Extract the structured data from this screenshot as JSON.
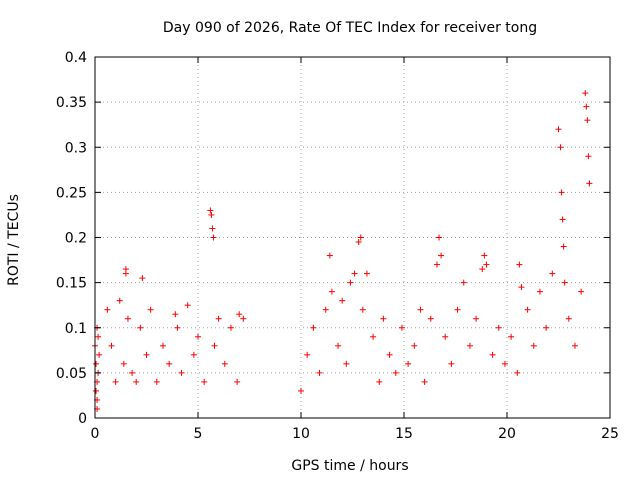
{
  "chart_data": {
    "type": "scatter",
    "title": "Day 090 of 2026, Rate Of TEC Index for receiver tong",
    "xlabel": "GPS time / hours",
    "ylabel": "ROTI / TECUs",
    "xlim": [
      0,
      25
    ],
    "ylim": [
      0,
      0.4
    ],
    "x_ticks": [
      0,
      5,
      10,
      15,
      20,
      25
    ],
    "x_tick_labels": [
      "0",
      "5",
      "10",
      "15",
      "20",
      "25"
    ],
    "y_ticks": [
      0,
      0.05,
      0.1,
      0.15,
      0.2,
      0.25,
      0.3,
      0.35,
      0.4
    ],
    "y_tick_labels": [
      "0",
      "0.05",
      "0.1",
      "0.15",
      "0.2",
      "0.25",
      "0.3",
      "0.35",
      "0.4"
    ],
    "grid": true,
    "marker": "plus",
    "marker_color": "#ff0000",
    "series": [
      {
        "x": [
          0.0,
          0.05,
          0.1,
          0.1,
          0.15,
          0.2,
          0.1,
          0.1,
          0.05,
          0.15,
          0.6,
          0.8,
          1.0,
          1.2,
          1.4,
          1.5,
          1.5,
          1.6,
          1.8,
          2.0,
          2.2,
          2.3,
          2.5,
          2.7,
          3.0,
          3.3,
          3.6,
          3.9,
          4.0,
          4.2,
          4.5,
          4.8,
          5.0,
          5.3,
          5.6,
          5.65,
          5.7,
          5.75,
          5.8,
          6.0,
          6.3,
          6.6,
          6.9,
          7.0,
          7.2,
          10.0,
          10.3,
          10.6,
          10.9,
          11.2,
          11.4,
          11.5,
          11.8,
          12.0,
          12.2,
          12.4,
          12.6,
          12.8,
          12.9,
          13.0,
          13.2,
          13.5,
          13.8,
          14.0,
          14.3,
          14.6,
          14.9,
          15.2,
          15.5,
          15.8,
          16.0,
          16.3,
          16.6,
          16.7,
          16.8,
          17.0,
          17.3,
          17.6,
          17.9,
          18.2,
          18.5,
          18.8,
          18.9,
          19.0,
          19.3,
          19.6,
          19.9,
          20.2,
          20.5,
          20.6,
          20.7,
          21.0,
          21.3,
          21.6,
          21.9,
          22.2,
          22.5,
          22.6,
          22.65,
          22.7,
          22.75,
          22.8,
          23.0,
          23.3,
          23.6,
          23.8,
          23.85,
          23.9,
          23.95,
          24.0
        ],
        "y": [
          0.08,
          0.03,
          0.02,
          0.1,
          0.09,
          0.07,
          0.04,
          0.01,
          0.06,
          0.05,
          0.12,
          0.08,
          0.04,
          0.13,
          0.06,
          0.16,
          0.165,
          0.11,
          0.05,
          0.04,
          0.1,
          0.155,
          0.07,
          0.12,
          0.04,
          0.08,
          0.06,
          0.115,
          0.1,
          0.05,
          0.125,
          0.07,
          0.09,
          0.04,
          0.23,
          0.225,
          0.21,
          0.2,
          0.08,
          0.11,
          0.06,
          0.1,
          0.04,
          0.115,
          0.11,
          0.03,
          0.07,
          0.1,
          0.05,
          0.12,
          0.18,
          0.14,
          0.08,
          0.13,
          0.06,
          0.15,
          0.16,
          0.195,
          0.2,
          0.12,
          0.16,
          0.09,
          0.04,
          0.11,
          0.07,
          0.05,
          0.1,
          0.06,
          0.08,
          0.12,
          0.04,
          0.11,
          0.17,
          0.2,
          0.18,
          0.09,
          0.06,
          0.12,
          0.15,
          0.08,
          0.11,
          0.165,
          0.18,
          0.17,
          0.07,
          0.1,
          0.06,
          0.09,
          0.05,
          0.17,
          0.145,
          0.12,
          0.08,
          0.14,
          0.1,
          0.16,
          0.32,
          0.3,
          0.25,
          0.22,
          0.19,
          0.15,
          0.11,
          0.08,
          0.14,
          0.36,
          0.345,
          0.33,
          0.29,
          0.26
        ]
      }
    ]
  }
}
